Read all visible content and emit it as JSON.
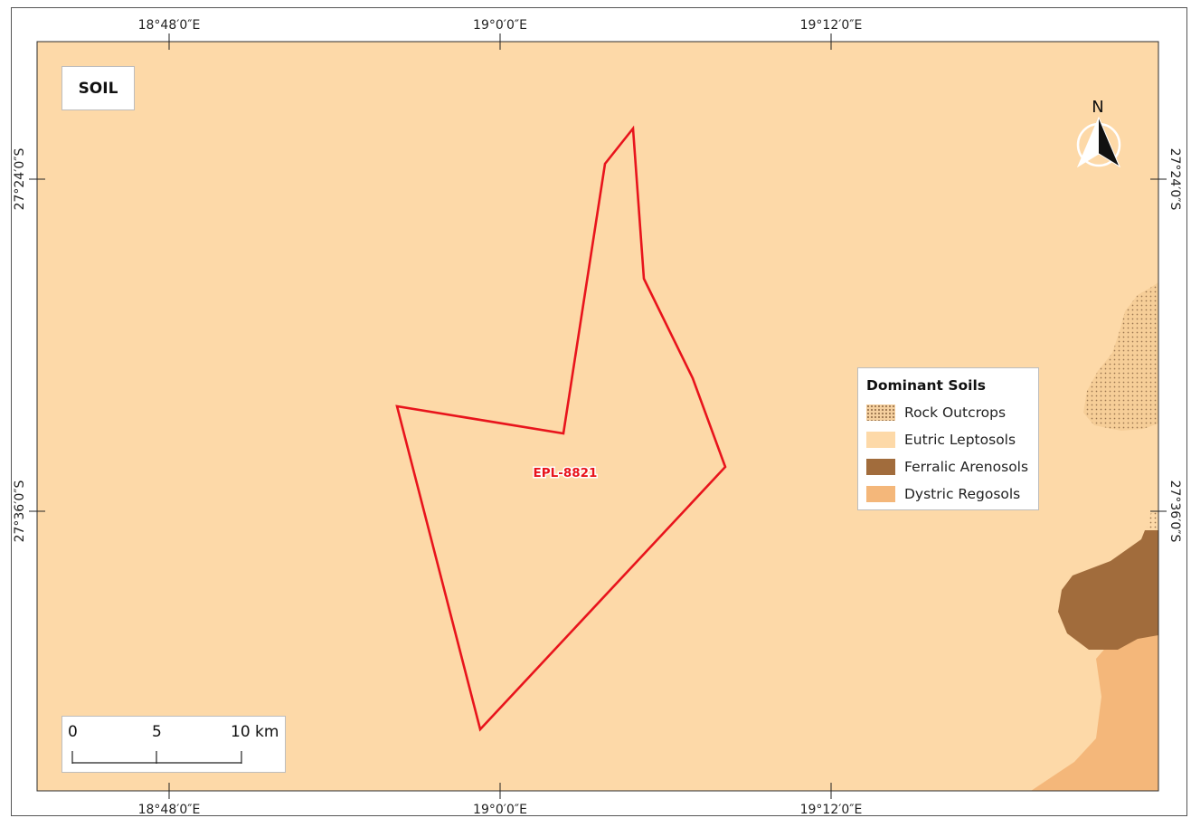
{
  "map_title": "SOIL",
  "legend": {
    "title": "Dominant Soils",
    "items": [
      {
        "label": "Rock Outcrops",
        "color": "#f0c896",
        "pattern": "dotted"
      },
      {
        "label": "Eutric Leptosols",
        "color": "#fdd9a8"
      },
      {
        "label": "Ferralic Arenosols",
        "color": "#a16c3c"
      },
      {
        "label": "Dystric Regosols",
        "color": "#f4b77a"
      }
    ]
  },
  "graticule": {
    "top_labels": [
      "18°48′0″E",
      "19°0′0″E",
      "19°12′0″E"
    ],
    "bottom_labels": [
      "18°48′0″E",
      "19°0′0″E",
      "19°12′0″E"
    ],
    "left_labels": [
      "27°24′0″S",
      "27°36′0″S"
    ],
    "right_labels": [
      "27°24′0″S",
      "27°36′0″S"
    ]
  },
  "area_label": "EPL-8821",
  "boundary_color": "#e8141c",
  "north_label": "N",
  "scale_bar": {
    "labels": [
      "0",
      "5",
      "10 km"
    ]
  }
}
